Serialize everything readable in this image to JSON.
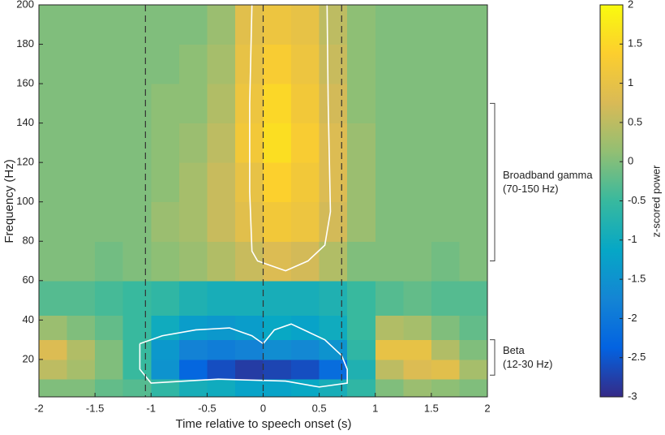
{
  "chart_data": {
    "type": "heatmap",
    "xlabel": "Time relative to speech onset (s)",
    "ylabel": "Frequency (Hz)",
    "colorbar_label": "z-scored power",
    "x": [
      -1.875,
      -1.625,
      -1.375,
      -1.125,
      -0.875,
      -0.625,
      -0.375,
      -0.125,
      0.125,
      0.375,
      0.625,
      0.875,
      1.125,
      1.375,
      1.625,
      1.875
    ],
    "y": [
      5,
      15,
      25,
      35,
      50,
      70,
      90,
      110,
      130,
      150,
      170,
      190
    ],
    "z": [
      [
        0,
        0,
        -0.2,
        -0.3,
        -0.6,
        -0.9,
        -1.0,
        -1.2,
        -1.2,
        -1.1,
        -0.9,
        -0.6,
        0,
        0.2,
        0.1,
        0
      ],
      [
        0.5,
        0.3,
        0,
        -0.5,
        -1.5,
        -2.3,
        -2.6,
        -2.8,
        -2.7,
        -2.6,
        -2.2,
        -0.8,
        0.5,
        0.8,
        0.9,
        0.3
      ],
      [
        0.8,
        0.4,
        0,
        -0.5,
        -1.4,
        -1.8,
        -1.9,
        -1.8,
        -1.6,
        -1.7,
        -1.5,
        -0.6,
        1.0,
        1.0,
        0.4,
        0
      ],
      [
        0.2,
        0,
        -0.2,
        -0.5,
        -1.0,
        -1.3,
        -1.4,
        -1.3,
        -1.1,
        -1.2,
        -1.0,
        -0.5,
        0.4,
        0.3,
        0,
        -0.2
      ],
      [
        -0.3,
        -0.3,
        -0.4,
        -0.5,
        -0.6,
        -0.8,
        -0.9,
        -0.9,
        -0.9,
        -0.9,
        -0.8,
        -0.5,
        -0.3,
        -0.2,
        -0.3,
        -0.3
      ],
      [
        0,
        0,
        -0.1,
        0,
        0.1,
        0.2,
        0.4,
        0.6,
        0.8,
        0.7,
        0.4,
        0,
        0,
        0,
        -0.1,
        0
      ],
      [
        0,
        0,
        0,
        0,
        0.2,
        0.3,
        0.6,
        0.9,
        1.2,
        1.1,
        0.7,
        0.2,
        0,
        0,
        0,
        0
      ],
      [
        0,
        0,
        0,
        0,
        0.1,
        0.3,
        0.6,
        1.0,
        1.4,
        1.2,
        0.8,
        0.2,
        0,
        0,
        0,
        0
      ],
      [
        0,
        0,
        0,
        0,
        0.1,
        0.2,
        0.5,
        1.2,
        1.6,
        1.3,
        0.8,
        0.2,
        0,
        0,
        0,
        0
      ],
      [
        0,
        0,
        0,
        0,
        0.1,
        0.1,
        0.4,
        1.1,
        1.5,
        1.2,
        0.7,
        0.1,
        0,
        0,
        0,
        0
      ],
      [
        0,
        0,
        0,
        0,
        0,
        0.1,
        0.3,
        1.0,
        1.3,
        1.1,
        0.6,
        0.1,
        0,
        0,
        0,
        0
      ],
      [
        0,
        0,
        0,
        0,
        0,
        0,
        0.2,
        0.9,
        1.1,
        1.0,
        0.5,
        0.1,
        0,
        0,
        0,
        0
      ]
    ],
    "xlim": [
      -2,
      2
    ],
    "xticks": [
      -2,
      -1.5,
      -1,
      -0.5,
      0,
      0.5,
      1,
      1.5,
      2
    ],
    "ylim": [
      1,
      200
    ],
    "yticks": [
      20,
      40,
      60,
      80,
      100,
      120,
      140,
      160,
      180,
      200
    ],
    "clim": [
      -3,
      2
    ],
    "cticks": [
      -3,
      -2.5,
      -2,
      -1.5,
      -1,
      -0.5,
      0,
      0.5,
      1,
      1.5,
      2
    ],
    "colormap": [
      "#352a87",
      "#0363e1",
      "#1485d4",
      "#06a7c6",
      "#38b99e",
      "#92bf73",
      "#d9ba56",
      "#fcce2e",
      "#f9fb0e"
    ],
    "vlines": [
      -1.05,
      0,
      0.7
    ],
    "contours": [
      {
        "color": "#ffffff",
        "x": [
          -0.1,
          -0.12,
          -0.12,
          -0.1,
          -0.05,
          0.05,
          0.2,
          0.4,
          0.55,
          0.6,
          0.58,
          0.57
        ],
        "y": [
          200,
          150,
          105,
          75,
          70,
          68,
          65,
          70,
          78,
          95,
          150,
          200
        ]
      },
      {
        "color": "#ffffff",
        "x": [
          -1.1,
          -0.9,
          -0.6,
          -0.3,
          -0.1,
          0,
          0.1,
          0.25,
          0.4,
          0.55,
          0.7,
          0.75,
          0.75,
          0.5,
          0.2,
          -0.4,
          -1.0,
          -1.1,
          -1.1
        ],
        "y": [
          28,
          32,
          35,
          36,
          32,
          28,
          35,
          38,
          34,
          30,
          22,
          15,
          8,
          6,
          9,
          10,
          8,
          15,
          28
        ]
      }
    ],
    "annotations": [
      {
        "text": [
          "Broadband gamma",
          "(70-150 Hz)"
        ],
        "range": [
          70,
          150
        ]
      },
      {
        "text": [
          "Beta",
          "(12-30 Hz)"
        ],
        "range": [
          12,
          30
        ]
      }
    ]
  }
}
